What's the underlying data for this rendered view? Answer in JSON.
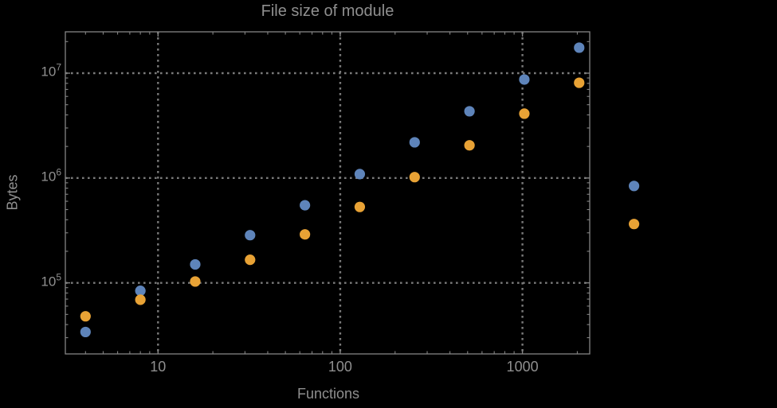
{
  "chart_data": {
    "type": "scatter",
    "title": "File size of module",
    "xlabel": "Functions",
    "ylabel": "Bytes",
    "x_scale": "log",
    "y_scale": "log",
    "xlim": [
      3.1,
      2340
    ],
    "ylim": [
      21000,
      24800000
    ],
    "grid": true,
    "legend": null,
    "x_gridlines": [
      10,
      100,
      1000
    ],
    "y_gridlines": [
      100000,
      1000000,
      10000000
    ],
    "x_tick_labels": [
      "10",
      "100",
      "1000"
    ],
    "y_tick_exponents": [
      5,
      6,
      7
    ],
    "x": [
      4,
      8,
      16,
      32,
      64,
      128,
      256,
      512,
      1024,
      2048,
      4096
    ],
    "series": [
      {
        "name": "blue-series",
        "color": "#5E84BA",
        "values": [
          34000,
          84000,
          150000,
          285000,
          550000,
          1090000,
          2190000,
          4330000,
          8700000,
          17500000,
          840000
        ]
      },
      {
        "name": "orange-series",
        "color": "#E8A235",
        "values": [
          48000,
          69000,
          103000,
          166000,
          290000,
          530000,
          1020000,
          2050000,
          4110000,
          8100000,
          364000
        ]
      }
    ],
    "colors": {
      "background": "#000000",
      "text": "#8f8f8f",
      "frame": "#848484",
      "gridline": "#7a7a7a",
      "series_blue": "#5E84BA",
      "series_orange": "#E8A235"
    }
  }
}
